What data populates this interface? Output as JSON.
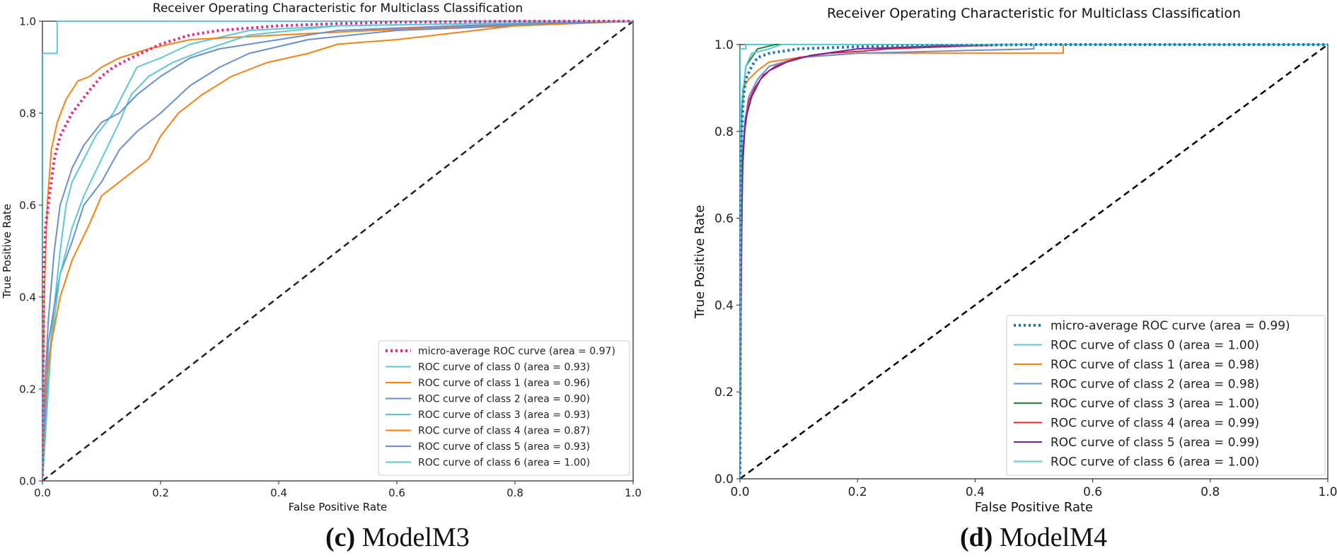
{
  "chart_data": [
    {
      "type": "line",
      "panel_label": "(c)",
      "panel_name": "ModelM3",
      "title": "Receiver Operating Characteristic for Multiclass Classification",
      "xlabel": "False Positive Rate",
      "ylabel": "True Positive Rate",
      "xlim": [
        0,
        1
      ],
      "ylim": [
        0,
        1
      ],
      "xticks": [
        "0.0",
        "0.2",
        "0.4",
        "0.6",
        "0.8",
        "1.0"
      ],
      "yticks": [
        "0.0",
        "0.2",
        "0.4",
        "0.6",
        "0.8",
        "1.0"
      ],
      "legend_position": "lower-right",
      "series": [
        {
          "name": "micro-average ROC curve (area = 0.97)",
          "color": "#e7298a",
          "style": "dotted",
          "points": [
            [
              0,
              0
            ],
            [
              0.002,
              0.45
            ],
            [
              0.005,
              0.55
            ],
            [
              0.01,
              0.6
            ],
            [
              0.02,
              0.7
            ],
            [
              0.03,
              0.75
            ],
            [
              0.05,
              0.8
            ],
            [
              0.08,
              0.85
            ],
            [
              0.1,
              0.88
            ],
            [
              0.12,
              0.9
            ],
            [
              0.15,
              0.92
            ],
            [
              0.2,
              0.95
            ],
            [
              0.25,
              0.97
            ],
            [
              0.3,
              0.98
            ],
            [
              0.4,
              0.99
            ],
            [
              0.5,
              0.995
            ],
            [
              0.6,
              0.998
            ],
            [
              0.8,
              1.0
            ],
            [
              1.0,
              1.0
            ]
          ]
        },
        {
          "name": "ROC curve of class 0 (area = 0.93)",
          "color": "#5bc8d6",
          "style": "solid",
          "points": [
            [
              0,
              0
            ],
            [
              0.005,
              0.1
            ],
            [
              0.01,
              0.25
            ],
            [
              0.02,
              0.38
            ],
            [
              0.03,
              0.5
            ],
            [
              0.04,
              0.6
            ],
            [
              0.05,
              0.65
            ],
            [
              0.07,
              0.7
            ],
            [
              0.09,
              0.75
            ],
            [
              0.12,
              0.8
            ],
            [
              0.14,
              0.85
            ],
            [
              0.16,
              0.9
            ],
            [
              0.2,
              0.92
            ],
            [
              0.25,
              0.95
            ],
            [
              0.35,
              0.98
            ],
            [
              0.5,
              0.99
            ],
            [
              1.0,
              1.0
            ]
          ]
        },
        {
          "name": "ROC curve of class 1 (area = 0.96)",
          "color": "#ff7f0e",
          "style": "solid",
          "points": [
            [
              0,
              0
            ],
            [
              0.003,
              0.4
            ],
            [
              0.008,
              0.6
            ],
            [
              0.015,
              0.72
            ],
            [
              0.025,
              0.78
            ],
            [
              0.04,
              0.83
            ],
            [
              0.06,
              0.87
            ],
            [
              0.08,
              0.88
            ],
            [
              0.1,
              0.9
            ],
            [
              0.13,
              0.92
            ],
            [
              0.18,
              0.94
            ],
            [
              0.25,
              0.96
            ],
            [
              0.4,
              0.97
            ],
            [
              0.56,
              0.98
            ],
            [
              0.85,
              0.995
            ],
            [
              1.0,
              1.0
            ]
          ]
        },
        {
          "name": "ROC curve of class 2 (area = 0.90)",
          "color": "#6a8fd1",
          "style": "solid",
          "points": [
            [
              0,
              0
            ],
            [
              0.005,
              0.15
            ],
            [
              0.01,
              0.3
            ],
            [
              0.02,
              0.38
            ],
            [
              0.03,
              0.45
            ],
            [
              0.05,
              0.52
            ],
            [
              0.07,
              0.6
            ],
            [
              0.1,
              0.65
            ],
            [
              0.13,
              0.72
            ],
            [
              0.16,
              0.76
            ],
            [
              0.2,
              0.8
            ],
            [
              0.25,
              0.86
            ],
            [
              0.3,
              0.9
            ],
            [
              0.35,
              0.93
            ],
            [
              0.45,
              0.96
            ],
            [
              0.6,
              0.98
            ],
            [
              0.8,
              0.99
            ],
            [
              1.0,
              1.0
            ]
          ]
        },
        {
          "name": "ROC curve of class 3 (area = 0.93)",
          "color": "#5bc8d6",
          "style": "solid",
          "points": [
            [
              0,
              0
            ],
            [
              0.006,
              0.12
            ],
            [
              0.015,
              0.3
            ],
            [
              0.03,
              0.45
            ],
            [
              0.05,
              0.55
            ],
            [
              0.07,
              0.62
            ],
            [
              0.1,
              0.7
            ],
            [
              0.13,
              0.78
            ],
            [
              0.15,
              0.84
            ],
            [
              0.18,
              0.88
            ],
            [
              0.22,
              0.91
            ],
            [
              0.28,
              0.94
            ],
            [
              0.35,
              0.97
            ],
            [
              0.5,
              0.99
            ],
            [
              1.0,
              1.0
            ]
          ]
        },
        {
          "name": "ROC curve of class 4 (area = 0.87)",
          "color": "#ff7f0e",
          "style": "solid",
          "points": [
            [
              0,
              0
            ],
            [
              0.005,
              0.2
            ],
            [
              0.015,
              0.3
            ],
            [
              0.03,
              0.4
            ],
            [
              0.05,
              0.48
            ],
            [
              0.08,
              0.56
            ],
            [
              0.1,
              0.62
            ],
            [
              0.14,
              0.66
            ],
            [
              0.18,
              0.7
            ],
            [
              0.2,
              0.75
            ],
            [
              0.23,
              0.8
            ],
            [
              0.27,
              0.84
            ],
            [
              0.32,
              0.88
            ],
            [
              0.38,
              0.91
            ],
            [
              0.45,
              0.93
            ],
            [
              0.5,
              0.95
            ],
            [
              0.6,
              0.96
            ],
            [
              0.8,
              0.99
            ],
            [
              1.0,
              1.0
            ]
          ]
        },
        {
          "name": "ROC curve of class 5 (area = 0.93)",
          "color": "#6a8fd1",
          "style": "solid",
          "points": [
            [
              0,
              0
            ],
            [
              0.004,
              0.2
            ],
            [
              0.01,
              0.35
            ],
            [
              0.02,
              0.5
            ],
            [
              0.03,
              0.6
            ],
            [
              0.05,
              0.68
            ],
            [
              0.07,
              0.73
            ],
            [
              0.1,
              0.78
            ],
            [
              0.13,
              0.8
            ],
            [
              0.16,
              0.84
            ],
            [
              0.2,
              0.88
            ],
            [
              0.25,
              0.92
            ],
            [
              0.3,
              0.94
            ],
            [
              0.4,
              0.96
            ],
            [
              0.5,
              0.98
            ],
            [
              0.7,
              0.99
            ],
            [
              1.0,
              1.0
            ]
          ]
        },
        {
          "name": "ROC curve of class 6 (area = 1.00)",
          "color": "#5bc8d6",
          "style": "solid",
          "points": [
            [
              0,
              0
            ],
            [
              0,
              0.93
            ],
            [
              0.025,
              0.93
            ],
            [
              0.025,
              1.0
            ],
            [
              1.0,
              1.0
            ]
          ]
        }
      ],
      "diagonal": {
        "points": [
          [
            0,
            0
          ],
          [
            1,
            1
          ]
        ],
        "color": "#222222",
        "style": "dashed"
      }
    },
    {
      "type": "line",
      "panel_label": "(d)",
      "panel_name": "ModelM4",
      "title": "Receiver Operating Characteristic for Multiclass Classification",
      "xlabel": "False Positive Rate",
      "ylabel": "True Positive Rate",
      "xlim": [
        0,
        1
      ],
      "ylim": [
        0,
        1
      ],
      "xticks": [
        "0.0",
        "0.2",
        "0.4",
        "0.6",
        "0.8",
        "1.0"
      ],
      "yticks": [
        "0.0",
        "0.2",
        "0.4",
        "0.6",
        "0.8",
        "1.0"
      ],
      "legend_position": "lower-right",
      "series": [
        {
          "name": "micro-average ROC curve (area = 0.99)",
          "color": "#1f77b4",
          "style": "dotted",
          "points": [
            [
              0,
              0
            ],
            [
              0.001,
              0.6
            ],
            [
              0.003,
              0.8
            ],
            [
              0.006,
              0.88
            ],
            [
              0.01,
              0.92
            ],
            [
              0.02,
              0.95
            ],
            [
              0.03,
              0.97
            ],
            [
              0.05,
              0.98
            ],
            [
              0.1,
              0.99
            ],
            [
              0.2,
              0.995
            ],
            [
              0.5,
              1.0
            ],
            [
              1.0,
              1.0
            ]
          ]
        },
        {
          "name": "ROC curve of class 0 (area = 1.00)",
          "color": "#5bc8d6",
          "style": "solid",
          "points": [
            [
              0,
              0
            ],
            [
              0,
              0.99
            ],
            [
              0.01,
              0.99
            ],
            [
              0.01,
              1.0
            ],
            [
              1.0,
              1.0
            ]
          ]
        },
        {
          "name": "ROC curve of class 1 (area = 0.98)",
          "color": "#ff7f0e",
          "style": "solid",
          "points": [
            [
              0,
              0
            ],
            [
              0.002,
              0.8
            ],
            [
              0.005,
              0.9
            ],
            [
              0.015,
              0.92
            ],
            [
              0.03,
              0.94
            ],
            [
              0.05,
              0.96
            ],
            [
              0.1,
              0.97
            ],
            [
              0.2,
              0.98
            ],
            [
              0.55,
              0.98
            ],
            [
              0.55,
              1.0
            ],
            [
              1.0,
              1.0
            ]
          ]
        },
        {
          "name": "ROC curve of class 2 (area = 0.98)",
          "color": "#6a8fd1",
          "style": "solid",
          "points": [
            [
              0,
              0
            ],
            [
              0.003,
              0.7
            ],
            [
              0.008,
              0.82
            ],
            [
              0.015,
              0.88
            ],
            [
              0.03,
              0.92
            ],
            [
              0.05,
              0.95
            ],
            [
              0.1,
              0.97
            ],
            [
              0.2,
              0.98
            ],
            [
              0.5,
              0.99
            ],
            [
              0.5,
              1.0
            ],
            [
              1.0,
              1.0
            ]
          ]
        },
        {
          "name": "ROC curve of class 3 (area = 1.00)",
          "color": "#1b8a3a",
          "style": "solid",
          "points": [
            [
              0,
              0
            ],
            [
              0.003,
              0.85
            ],
            [
              0.01,
              0.95
            ],
            [
              0.03,
              0.99
            ],
            [
              0.06,
              1.0
            ],
            [
              1.0,
              1.0
            ]
          ]
        },
        {
          "name": "ROC curve of class 4 (area = 0.99)",
          "color": "#e8202a",
          "style": "solid",
          "points": [
            [
              0,
              0
            ],
            [
              0.002,
              0.42
            ],
            [
              0.004,
              0.7
            ],
            [
              0.008,
              0.8
            ],
            [
              0.015,
              0.87
            ],
            [
              0.025,
              0.9
            ],
            [
              0.04,
              0.93
            ],
            [
              0.06,
              0.95
            ],
            [
              0.1,
              0.97
            ],
            [
              0.15,
              0.98
            ],
            [
              0.21,
              0.985
            ],
            [
              0.25,
              0.99
            ],
            [
              0.35,
              0.995
            ],
            [
              0.45,
              1.0
            ],
            [
              1.0,
              1.0
            ]
          ]
        },
        {
          "name": "ROC curve of class 5 (area = 0.99)",
          "color": "#7b1fa2",
          "style": "solid",
          "points": [
            [
              0,
              0
            ],
            [
              0.002,
              0.5
            ],
            [
              0.005,
              0.75
            ],
            [
              0.01,
              0.83
            ],
            [
              0.02,
              0.88
            ],
            [
              0.035,
              0.92
            ],
            [
              0.05,
              0.94
            ],
            [
              0.08,
              0.96
            ],
            [
              0.12,
              0.975
            ],
            [
              0.2,
              0.99
            ],
            [
              0.3,
              0.995
            ],
            [
              0.4,
              1.0
            ],
            [
              1.0,
              1.0
            ]
          ]
        },
        {
          "name": "ROC curve of class 6 (area = 1.00)",
          "color": "#5bc8d6",
          "style": "solid",
          "points": [
            [
              0,
              0
            ],
            [
              0.002,
              0.85
            ],
            [
              0.01,
              0.95
            ],
            [
              0.02,
              0.98
            ],
            [
              0.05,
              0.99
            ],
            [
              0.07,
              1.0
            ],
            [
              1.0,
              1.0
            ]
          ]
        }
      ],
      "diagonal": {
        "points": [
          [
            0,
            0
          ],
          [
            1,
            1
          ]
        ],
        "color": "#000000",
        "style": "dashed"
      }
    }
  ]
}
